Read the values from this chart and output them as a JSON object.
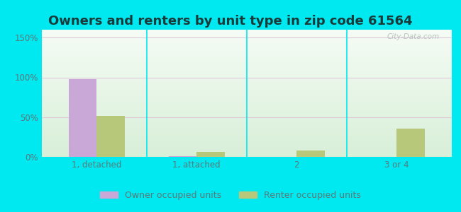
{
  "title": "Owners and renters by unit type in zip code 61564",
  "categories": [
    "1, detached",
    "1, attached",
    "2",
    "3 or 4"
  ],
  "owner_values": [
    98,
    1,
    0,
    0
  ],
  "renter_values": [
    52,
    6,
    8,
    36
  ],
  "owner_color": "#c9a8d8",
  "renter_color": "#b8c87a",
  "ylim": [
    0,
    160
  ],
  "yticks": [
    0,
    50,
    100,
    150
  ],
  "ytick_labels": [
    "0%",
    "50%",
    "100%",
    "150%"
  ],
  "outer_bg": "#00e8f0",
  "title_fontsize": 13,
  "title_color": "#1a3a3a",
  "tick_color": "#5a7a7a",
  "legend_owner": "Owner occupied units",
  "legend_renter": "Renter occupied units",
  "watermark": "City-Data.com",
  "bar_width": 0.28
}
